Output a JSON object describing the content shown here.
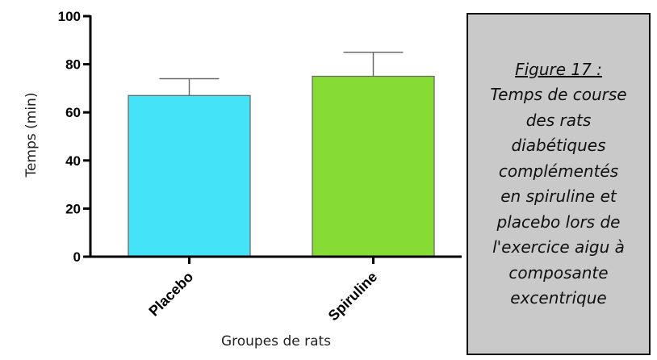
{
  "chart_data": {
    "type": "bar",
    "categories": [
      "Placebo",
      "Spiruline"
    ],
    "values": [
      67,
      75
    ],
    "errors": [
      7,
      10
    ],
    "colors": [
      "#44e3f7",
      "#86dc34"
    ],
    "xlabel": "Groupes de rats",
    "ylabel": "Temps (min)",
    "ylim": [
      0,
      100
    ],
    "yticks": [
      0,
      20,
      40,
      60,
      80,
      100
    ],
    "grid": false
  },
  "caption": {
    "title": "Figure 17 :",
    "body": "Temps de course\ndes rats\ndiabétiques\ncomplémentés\nen spiruline et\nplacebo lors de\nl'exercice aigu à\ncomposante\nexcentrique"
  }
}
